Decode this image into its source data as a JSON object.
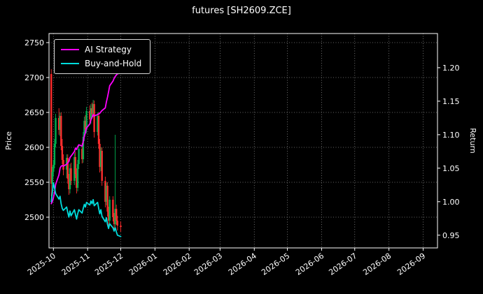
{
  "title": "futures [SH2609.ZCE]",
  "legend": {
    "items": [
      {
        "label": "AI Strategy",
        "color": "#ff00ff"
      },
      {
        "label": "Buy-and-Hold",
        "color": "#00dcdc"
      }
    ]
  },
  "axes": {
    "left_label": "Price",
    "right_label": "Return",
    "left_ticks": [
      "2500",
      "2550",
      "2600",
      "2650",
      "2700",
      "2750"
    ],
    "right_ticks": [
      "0.95",
      "1.00",
      "1.05",
      "1.10",
      "1.15",
      "1.20"
    ],
    "x_ticks": [
      "2025-10",
      "2025-11",
      "2025-12",
      "2026-01",
      "2026-02",
      "2026-03",
      "2026-04",
      "2026-05",
      "2026-06",
      "2026-07",
      "2026-08",
      "2026-09"
    ]
  },
  "chart_data": {
    "type": "candlestick+line",
    "title": "futures [SH2609.ZCE]",
    "background": "#000000",
    "grid": {
      "color": "#9f9f9f",
      "style": "dotted",
      "on": true
    },
    "legend_position": "upper-left",
    "x_domain": [
      "2025-09-27",
      "2026-09-14"
    ],
    "x_tick_dates": [
      "2025-10-01",
      "2025-11-01",
      "2025-12-01",
      "2026-01-01",
      "2026-02-01",
      "2026-03-01",
      "2026-04-01",
      "2026-05-01",
      "2026-06-01",
      "2026-07-01",
      "2026-08-01",
      "2026-09-01"
    ],
    "y_left": {
      "label": "Price",
      "min": 2456,
      "max": 2763,
      "ticks": [
        2500,
        2550,
        2600,
        2650,
        2700,
        2750
      ]
    },
    "y_right": {
      "label": "Return",
      "min": 0.931,
      "max": 1.251,
      "ticks": [
        0.95,
        1.0,
        1.05,
        1.1,
        1.15,
        1.2
      ]
    },
    "dates": [
      "2025-09-29",
      "2025-09-30",
      "2025-10-01",
      "2025-10-02",
      "2025-10-03",
      "2025-10-06",
      "2025-10-07",
      "2025-10-08",
      "2025-10-09",
      "2025-10-10",
      "2025-10-13",
      "2025-10-14",
      "2025-10-15",
      "2025-10-16",
      "2025-10-17",
      "2025-10-20",
      "2025-10-21",
      "2025-10-22",
      "2025-10-23",
      "2025-10-24",
      "2025-10-27",
      "2025-10-28",
      "2025-10-29",
      "2025-10-30",
      "2025-10-31",
      "2025-11-03",
      "2025-11-04",
      "2025-11-05",
      "2025-11-06",
      "2025-11-07",
      "2025-11-10",
      "2025-11-11",
      "2025-11-12",
      "2025-11-13",
      "2025-11-14",
      "2025-11-17",
      "2025-11-18",
      "2025-11-19",
      "2025-11-20",
      "2025-11-21",
      "2025-11-24",
      "2025-11-25",
      "2025-11-26",
      "2025-11-27",
      "2025-11-28",
      "2025-12-01"
    ],
    "candles": {
      "up_color": "#00b050",
      "down_color": "#ff2d2d",
      "open": [
        2705,
        2548,
        2565,
        2575,
        2605,
        2642,
        2625,
        2645,
        2602,
        2582,
        2568,
        2585,
        2555,
        2540,
        2570,
        2552,
        2586,
        2562,
        2542,
        2576,
        2598,
        2583,
        2615,
        2638,
        2626,
        2652,
        2640,
        2656,
        2648,
        2662,
        2622,
        2645,
        2605,
        2572,
        2595,
        2552,
        2522,
        2545,
        2508,
        2495,
        2525,
        2500,
        2490,
        2512,
        2495,
        2488
      ],
      "high": [
        2712,
        2572,
        2582,
        2612,
        2648,
        2656,
        2650,
        2650,
        2612,
        2590,
        2590,
        2590,
        2562,
        2576,
        2578,
        2592,
        2594,
        2570,
        2582,
        2604,
        2606,
        2622,
        2644,
        2646,
        2658,
        2660,
        2662,
        2664,
        2668,
        2667,
        2650,
        2650,
        2612,
        2600,
        2600,
        2558,
        2550,
        2550,
        2515,
        2530,
        2530,
        2506,
        2618,
        2518,
        2502,
        2494
      ],
      "low": [
        2530,
        2541,
        2558,
        2570,
        2600,
        2618,
        2616,
        2596,
        2576,
        2560,
        2556,
        2548,
        2532,
        2534,
        2546,
        2546,
        2556,
        2534,
        2537,
        2569,
        2577,
        2578,
        2609,
        2619,
        2620,
        2633,
        2634,
        2641,
        2643,
        2614,
        2617,
        2598,
        2564,
        2566,
        2545,
        2514,
        2517,
        2501,
        2487,
        2489,
        2494,
        2483,
        2485,
        2489,
        2481,
        2479
      ],
      "close": [
        2548,
        2565,
        2575,
        2605,
        2642,
        2625,
        2645,
        2602,
        2582,
        2568,
        2585,
        2555,
        2540,
        2570,
        2552,
        2586,
        2562,
        2542,
        2576,
        2598,
        2583,
        2615,
        2638,
        2626,
        2652,
        2640,
        2656,
        2648,
        2662,
        2622,
        2645,
        2605,
        2572,
        2595,
        2552,
        2522,
        2545,
        2508,
        2495,
        2525,
        2500,
        2490,
        2512,
        2495,
        2488,
        2486
      ]
    },
    "series": [
      {
        "name": "AI Strategy",
        "color": "#ff00ff",
        "axis": "right",
        "values": [
          0.997,
          1.0,
          1.006,
          1.014,
          1.026,
          1.04,
          1.05,
          1.053,
          1.054,
          1.053,
          1.056,
          1.058,
          1.06,
          1.066,
          1.068,
          1.075,
          1.08,
          1.078,
          1.082,
          1.085,
          1.083,
          1.09,
          1.098,
          1.103,
          1.11,
          1.116,
          1.122,
          1.126,
          1.13,
          1.128,
          1.13,
          1.131,
          1.132,
          1.134,
          1.136,
          1.14,
          1.149,
          1.156,
          1.164,
          1.173,
          1.18,
          1.184,
          1.187,
          1.189,
          1.191,
          1.192
        ]
      },
      {
        "name": "Buy-and-Hold",
        "color": "#00dcdc",
        "axis": "right",
        "values": [
          1.0,
          1.014,
          1.028,
          1.02,
          1.012,
          1.004,
          1.008,
          0.997,
          0.99,
          0.987,
          0.992,
          0.984,
          0.977,
          0.986,
          0.979,
          0.988,
          0.981,
          0.974,
          0.982,
          0.988,
          0.983,
          0.99,
          0.996,
          0.992,
          0.999,
          0.995,
          1.001,
          0.997,
          1.003,
          0.994,
          0.999,
          0.99,
          0.982,
          0.988,
          0.978,
          0.97,
          0.976,
          0.966,
          0.96,
          0.967,
          0.961,
          0.956,
          0.961,
          0.955,
          0.95,
          0.948
        ]
      }
    ]
  }
}
